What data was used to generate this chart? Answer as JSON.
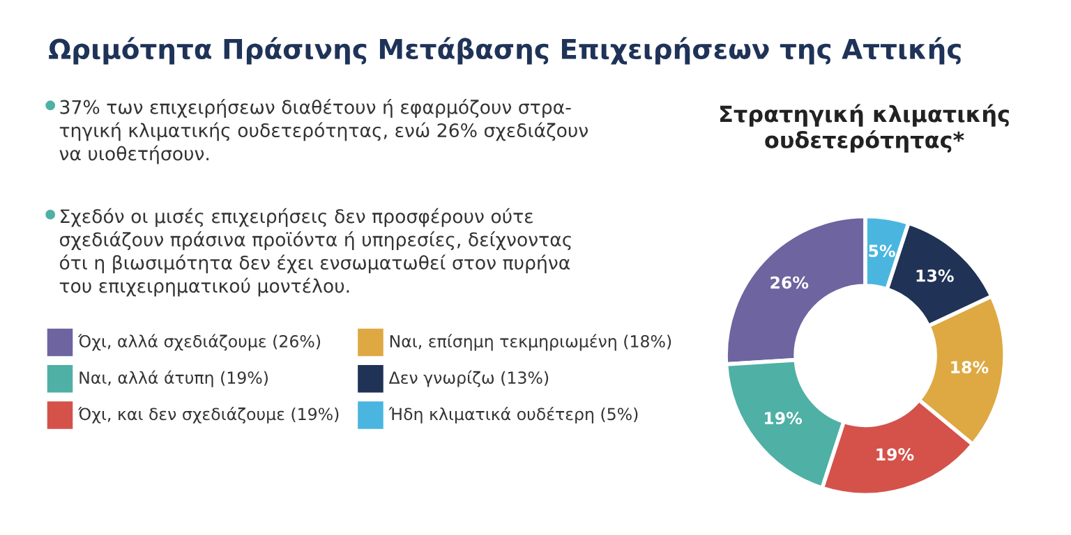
{
  "chart_data": {
    "type": "donut",
    "title": "Ωριμότητα Πράσινης Μετάβασης Επιχειρήσεων της Αττικής",
    "subtitle": "Στρατηγική κλιματικής\nουδετερότητας*",
    "annotations": [
      "37% των επιχειρήσεων διαθέτουν ή εφαρμόζουν στρα-\nτηγική κλιματικής ουδετερότητας, ενώ 26% σχεδιάζουν\nνα υιοθετήσουν.",
      "Σχεδόν οι μισές επιχειρήσεις δεν προσφέρουν ούτε\nσχεδιάζουν πράσινα προϊόντα ή υπηρεσίες, δείχνοντας\nότι η βιωσιμότητα δεν έχει ενσωματωθεί στον πυρήνα\nτου επιχειρηματικού μοντέλου."
    ],
    "categories": [
      "Όχι, αλλά σχεδιάζουμε (26%)",
      "Ναι, αλλά άτυπη (19%)",
      "Όχι, και δεν σχεδιάζουμε (19%)",
      "Ναι, επίσημη τεκμηριωμένη (18%)",
      "Δεν γνωρίζω (13%)",
      "Ήδη κλιματικά ουδέτερη (5%)"
    ],
    "values": [
      26,
      19,
      19,
      18,
      13,
      5
    ],
    "colors": [
      "#6e64a0",
      "#4fb0a5",
      "#d4524a",
      "#dea942",
      "#203356",
      "#4ab6e0"
    ],
    "value_labels": [
      "26%",
      "19%",
      "19%",
      "18%",
      "13%",
      "5%"
    ],
    "legend": "left"
  }
}
